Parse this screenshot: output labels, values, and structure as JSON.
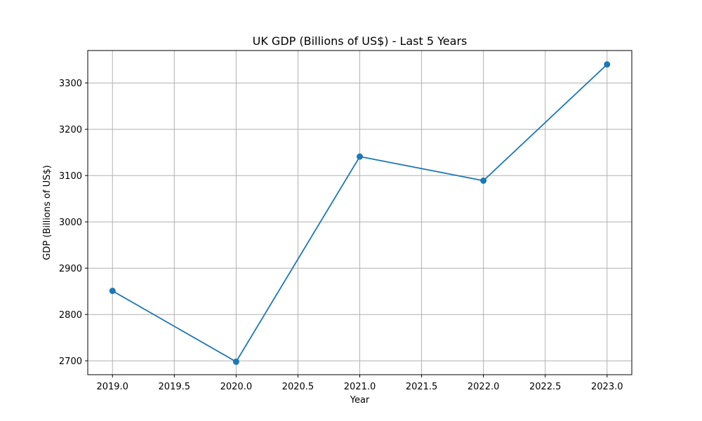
{
  "chart_data": {
    "type": "line",
    "title": "UK GDP (Billions of US$) - Last 5 Years",
    "xlabel": "Year",
    "ylabel": "GDP (Billions of US$)",
    "x": [
      2019,
      2020,
      2021,
      2022,
      2023
    ],
    "series": [
      {
        "values": [
          2851,
          2698,
          3141,
          3089,
          3340
        ]
      }
    ],
    "xlim": [
      2018.8,
      2023.2
    ],
    "ylim": [
      2670,
      3370
    ],
    "x_ticks": [
      "2019.0",
      "2019.5",
      "2020.0",
      "2020.5",
      "2021.0",
      "2021.5",
      "2022.0",
      "2022.5",
      "2023.0"
    ],
    "y_ticks": [
      "2700",
      "2800",
      "2900",
      "3000",
      "3100",
      "3200",
      "3300"
    ],
    "grid": true,
    "legend": "none",
    "line_color": "#1f77b4",
    "grid_color": "#b0b0b0",
    "marker": "circle"
  }
}
